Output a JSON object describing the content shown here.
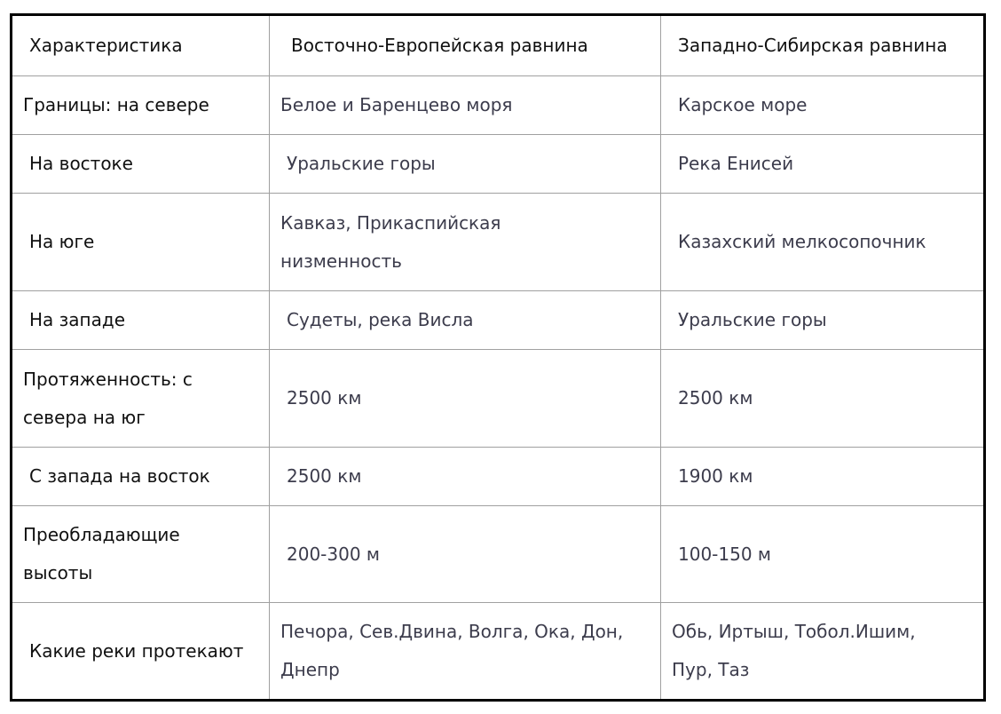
{
  "table": {
    "header": [
      "Характеристика",
      "Восточно-Европейская равнина",
      "Западно-Сибирская равнина"
    ],
    "rows": [
      [
        "Границы: на севере",
        "Белое и Баренцево моря",
        "Карское море"
      ],
      [
        "На востоке",
        "Уральские горы",
        "Река Енисей"
      ],
      [
        "На юге",
        "Кавказ, Прикаспийская низменность",
        "Казахский мелкосопочник"
      ],
      [
        "На западе",
        "Судеты, река Висла",
        "Уральские горы"
      ],
      [
        "Протяженность: с севера на юг",
        "2500 км",
        "2500 км"
      ],
      [
        "С запада на восток",
        "2500 км",
        "1900 км"
      ],
      [
        "Преобладающие высоты",
        "200-300 м",
        "100-150 м"
      ],
      [
        "Какие реки протекают",
        "Печора, Сев.Двина, Волга,  Ока, Дон, Днепр",
        "Обь, Иртыш, Тобол.Ишим, Пур, Таз"
      ]
    ]
  }
}
